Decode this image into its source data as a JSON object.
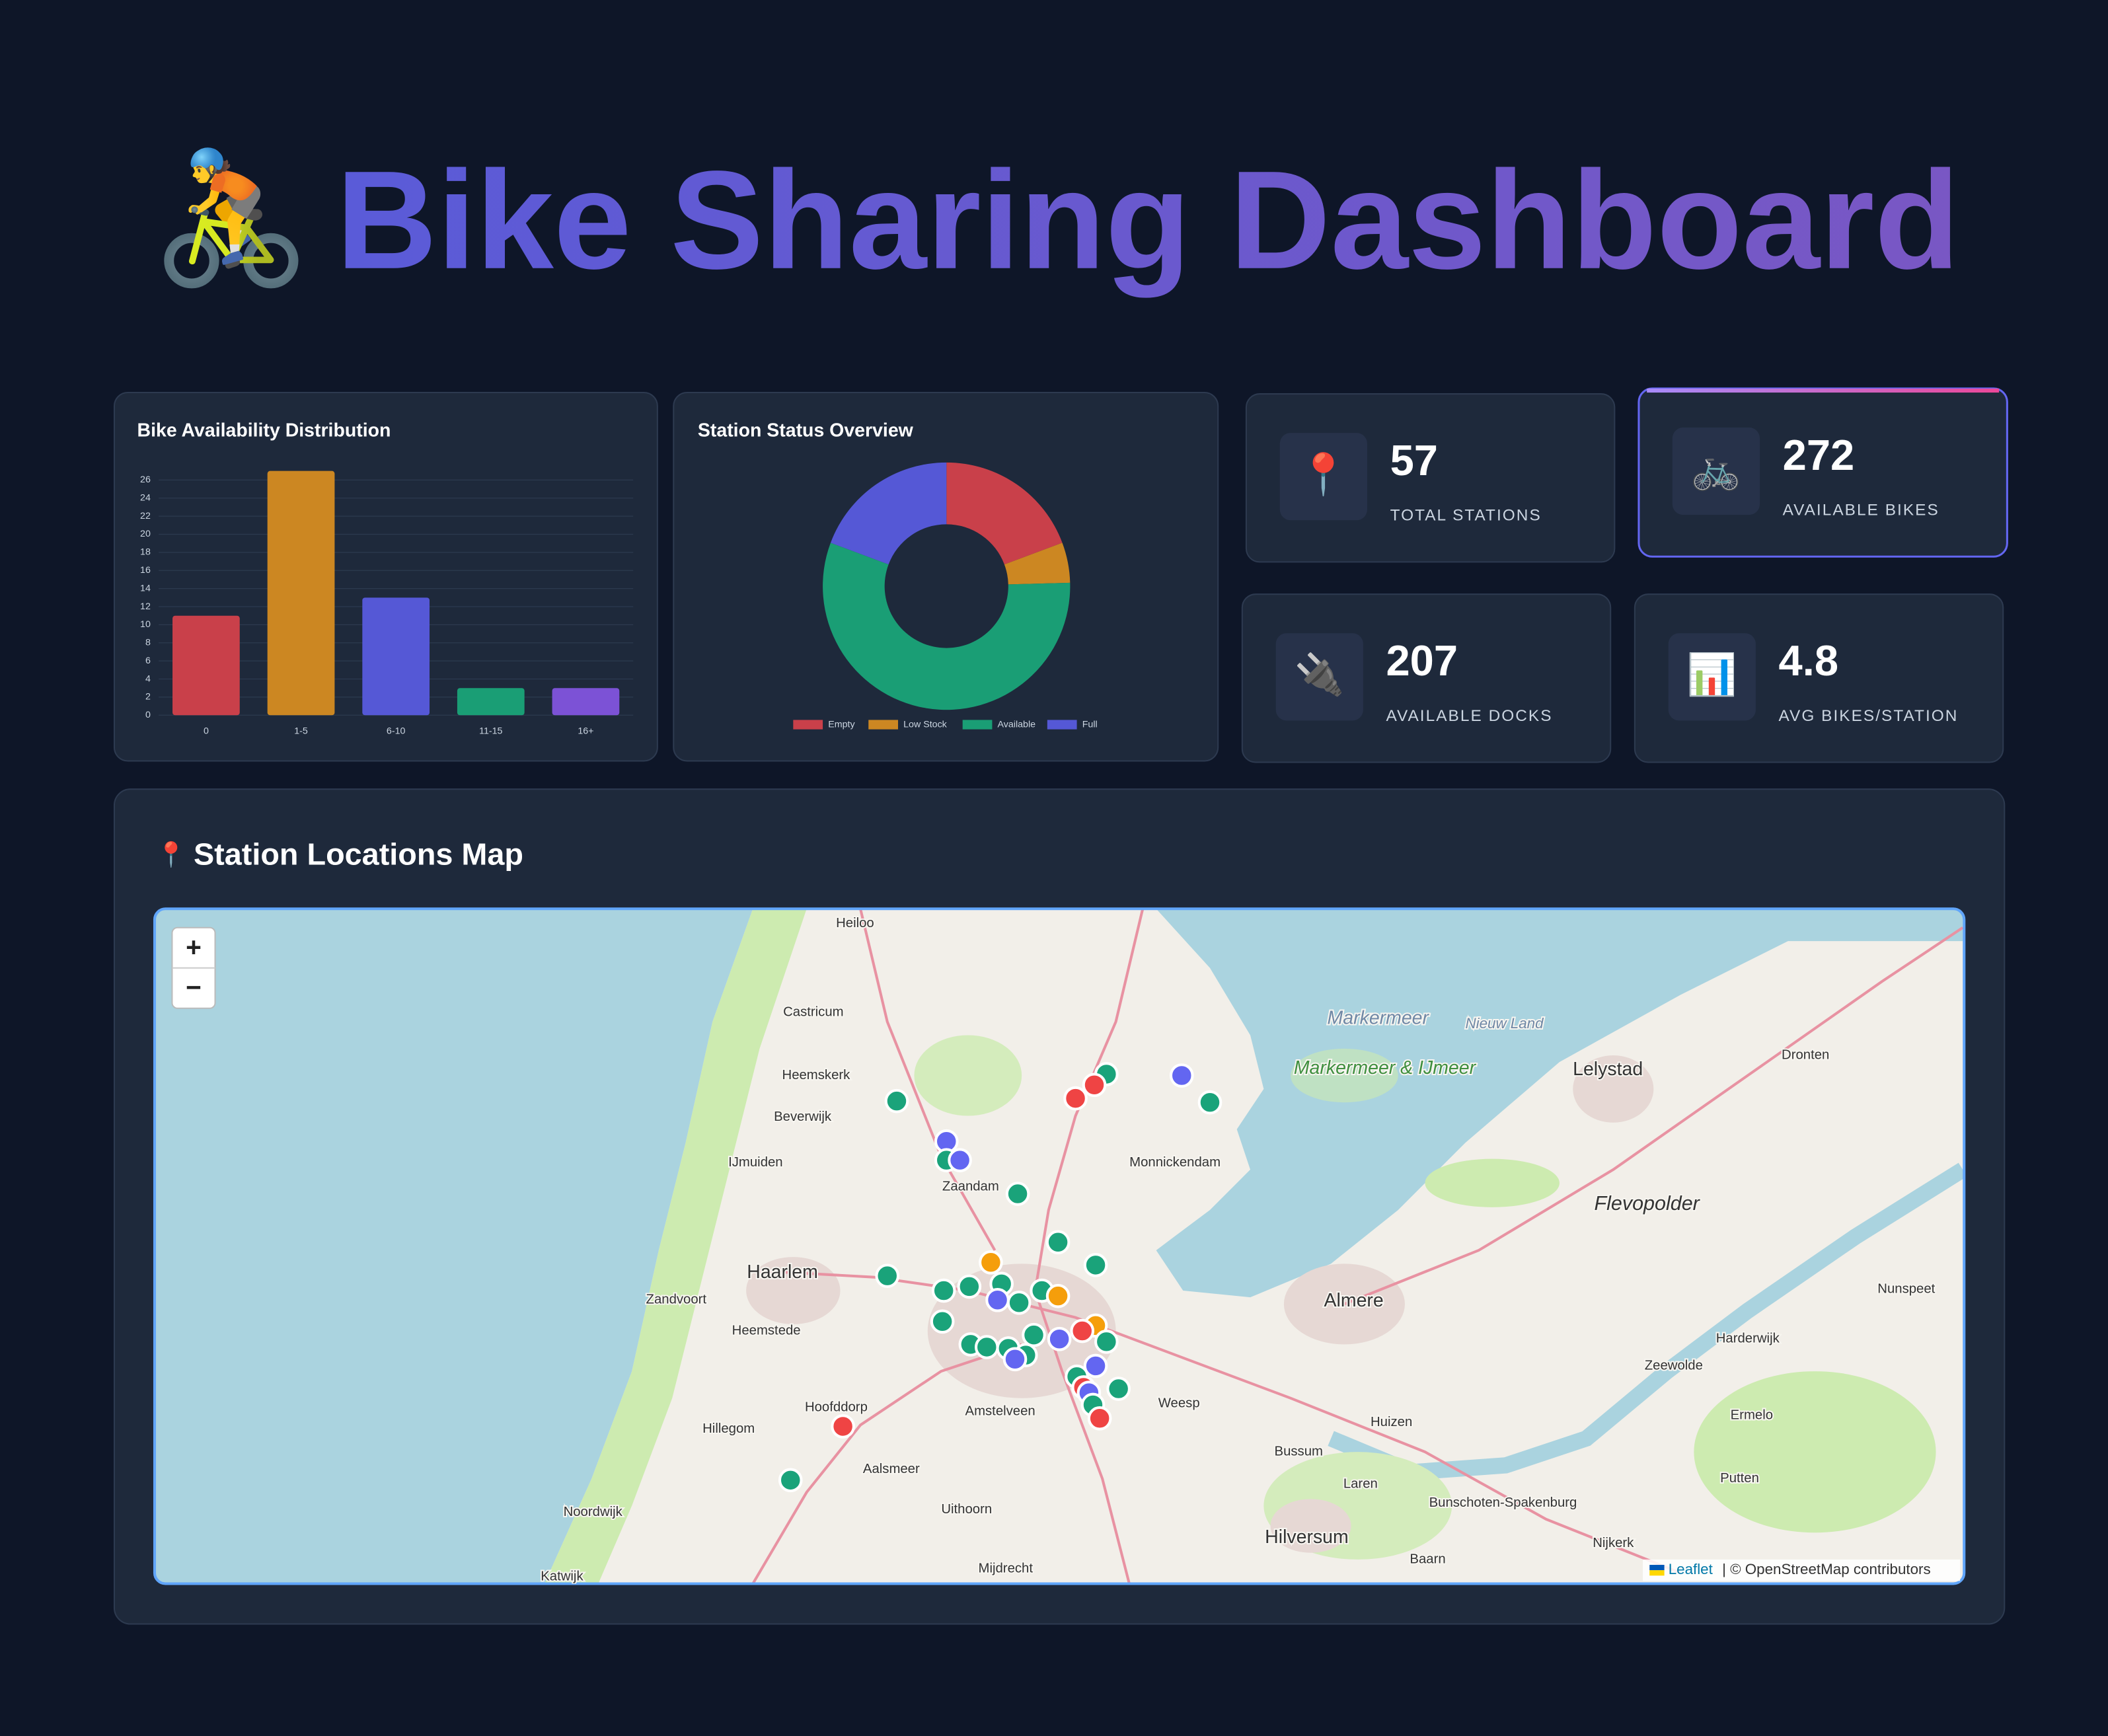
{
  "header": {
    "icon": "🚴",
    "title": "Bike Sharing Dashboard"
  },
  "chart_data": [
    {
      "type": "bar",
      "title": "Bike Availability Distribution",
      "categories": [
        "0",
        "1-5",
        "6-10",
        "11-15",
        "16+"
      ],
      "values": [
        11,
        27,
        13,
        3,
        3
      ],
      "colors": [
        "#c9404a",
        "#cc8722",
        "#5558d6",
        "#1a9e75",
        "#7c52d6"
      ],
      "ylim": [
        0,
        27
      ],
      "yticks": [
        0,
        2,
        4,
        6,
        8,
        10,
        12,
        14,
        16,
        18,
        20,
        22,
        24,
        26
      ],
      "grid": true
    },
    {
      "type": "pie",
      "title": "Station Status Overview",
      "categories": [
        "Empty",
        "Low Stock",
        "Available",
        "Full"
      ],
      "values": [
        11,
        3,
        32,
        11
      ],
      "colors": [
        "#c9404a",
        "#cc8722",
        "#1a9e75",
        "#5558d6"
      ],
      "donut": true,
      "legend": "bottom"
    }
  ],
  "stats": [
    {
      "icon": "📍",
      "value": 57,
      "label": "TOTAL STATIONS"
    },
    {
      "icon": "🚲",
      "value": 272,
      "label": "AVAILABLE BIKES"
    },
    {
      "icon": "🔌",
      "value": 207,
      "label": "AVAILABLE DOCKS"
    },
    {
      "icon": "📊",
      "value": 4.8,
      "label": "AVG BIKES/STATION"
    }
  ],
  "map": {
    "icon": "📍",
    "title": "Station Locations Map",
    "zoom_in": "+",
    "zoom_out": "−",
    "attribution_link": "Leaflet",
    "attribution": "| © OpenStreetMap contributors",
    "labels": [
      "Heiloo",
      "Castricum",
      "Heemskerk",
      "Beverwijk",
      "IJmuiden",
      "Zaandam",
      "Monnickendam",
      "Haarlem",
      "Zandvoort",
      "Heemstede",
      "Amstelveen",
      "Hoofddorp",
      "Hillegom",
      "Aalsmeer",
      "Uithoorn",
      "Noordwijk",
      "Katwijk",
      "Mijdrecht",
      "Weesp",
      "Huizen",
      "Bussum",
      "Laren",
      "Hilversum",
      "Baarn",
      "Bunschoten-Spakenburg",
      "Nijkerk",
      "Almere",
      "Lelystad",
      "Dronten",
      "Zeewolde",
      "Harderwijk",
      "Ermelo",
      "Putten",
      "Nunspeet",
      "Flevopolder",
      "Markermeer",
      "Markermeer & IJmeer",
      "Nieuw Land"
    ]
  }
}
